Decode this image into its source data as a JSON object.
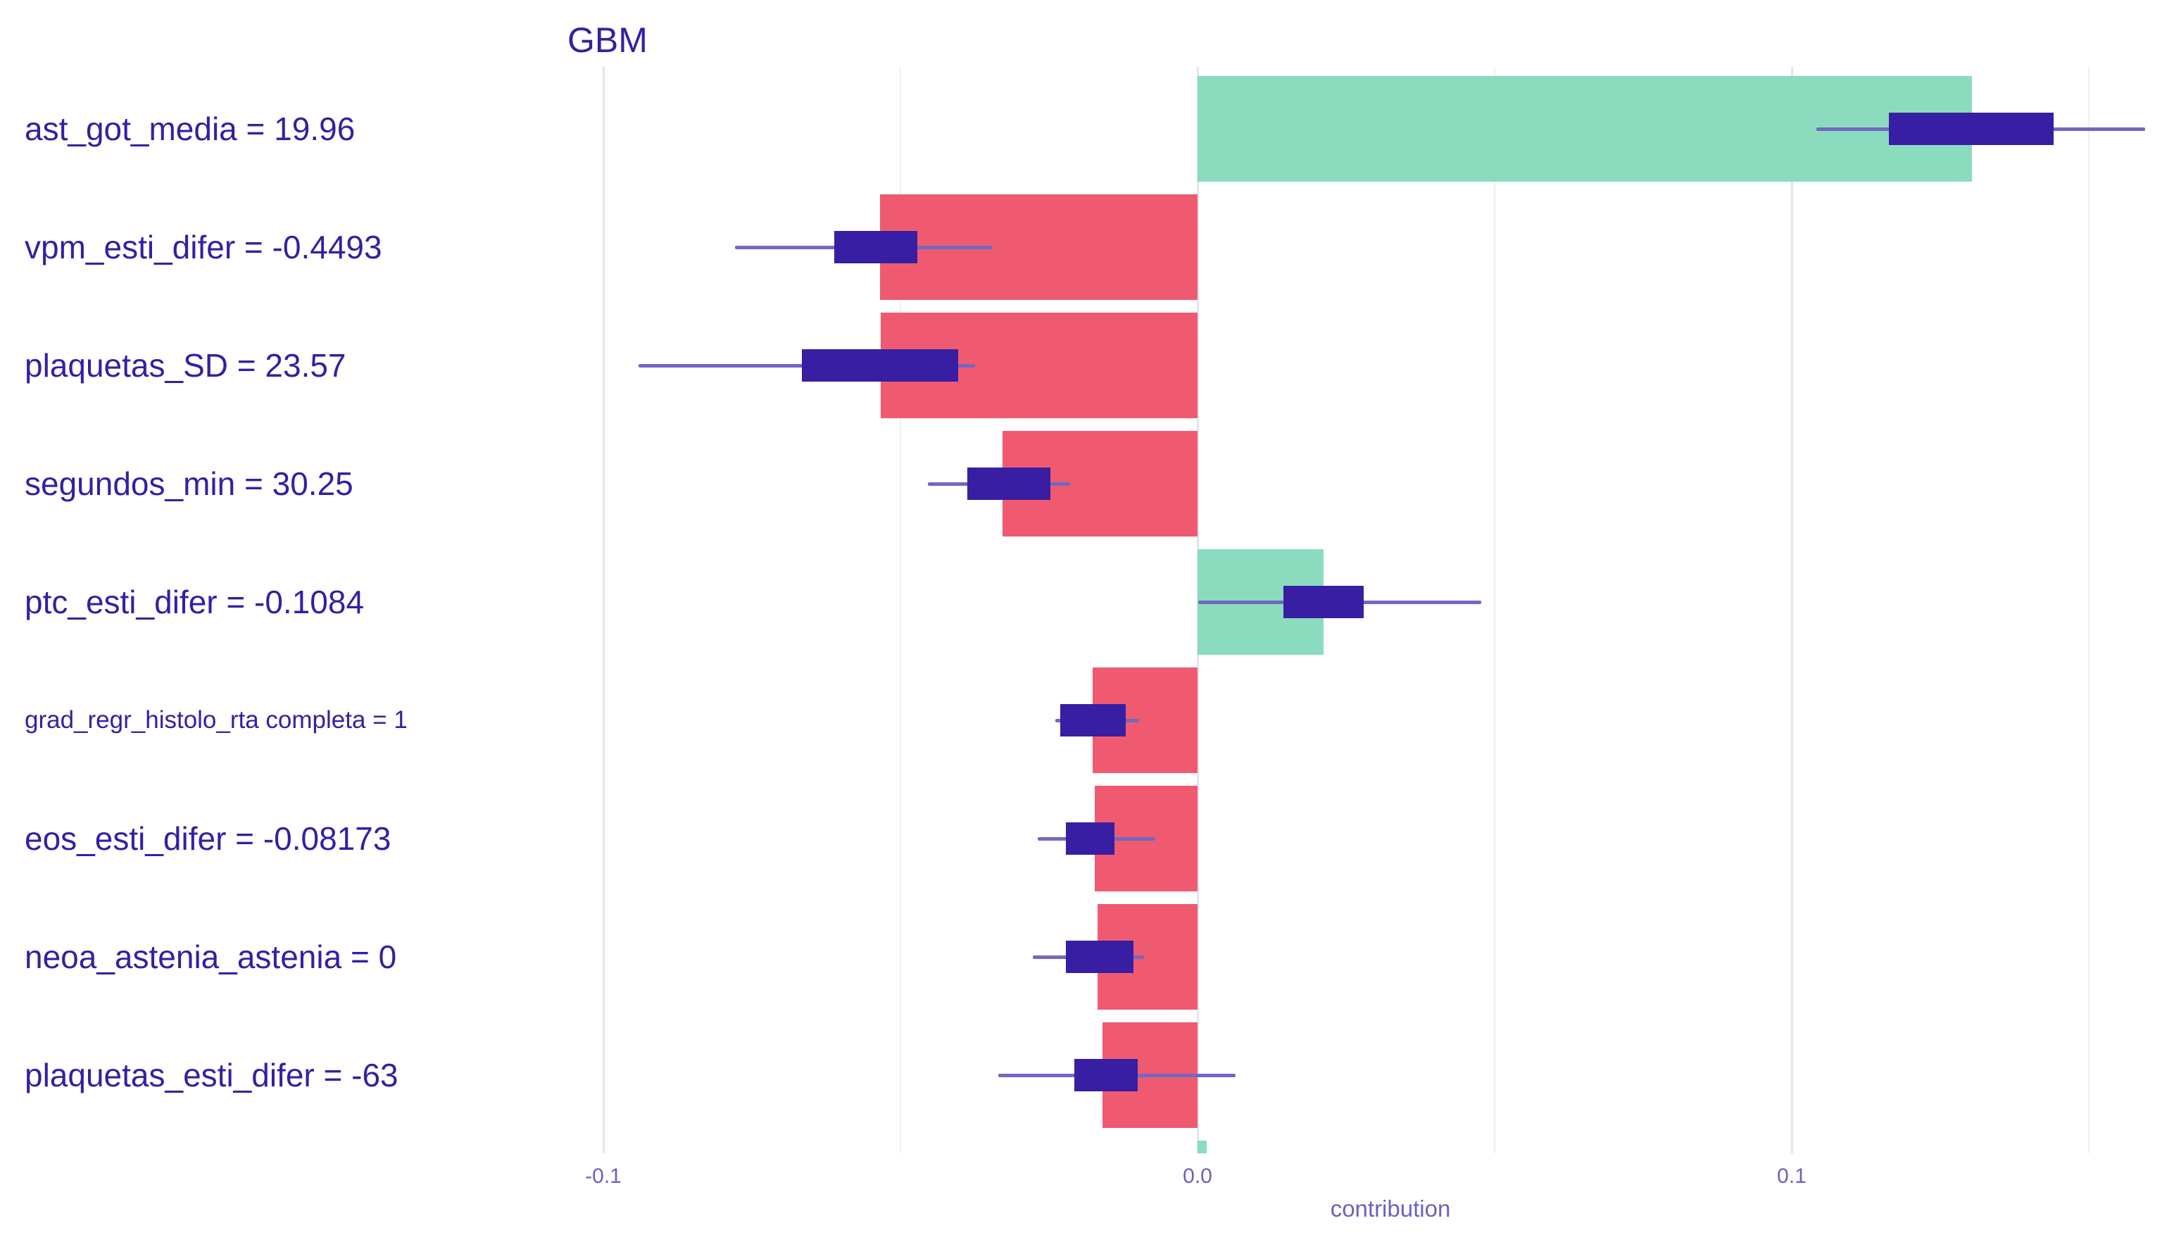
{
  "title": "GBM",
  "axis": {
    "xlabel": "contribution",
    "ticks": [
      {
        "label": "-0.1",
        "value": -0.1
      },
      {
        "label": "0.0",
        "value": 0.0
      },
      {
        "label": "0.1",
        "value": 0.1
      }
    ]
  },
  "colors": {
    "positive_bar": "#8bdcbe",
    "negative_bar": "#f05a71",
    "boxplot": "#371ea3",
    "whisker": "#7268c2",
    "label_text": "#371ea3",
    "axis_text": "#6b63ba",
    "grid_major": "#e4e4ec",
    "grid_minor": "#f0f0f6"
  },
  "chart_data": {
    "type": "bar",
    "orientation": "horizontal",
    "title": "GBM",
    "xlabel": "contribution",
    "xlim": [
      -0.113,
      0.164
    ],
    "x_ticks": [
      -0.1,
      0.0,
      0.1
    ],
    "grid_major": [
      -0.1,
      0.0,
      0.1
    ],
    "grid_minor": [
      -0.05,
      0.05,
      0.15
    ],
    "legend_position": "none",
    "grid": true,
    "bars": [
      {
        "label": "ast_got_media = 19.96",
        "value": 0.1303,
        "box": [
          0.1163,
          0.1441
        ],
        "whisker": [
          0.1041,
          0.1595
        ],
        "small_font": false
      },
      {
        "label": "vpm_esti_difer = -0.4493",
        "value": -0.0534,
        "box": [
          -0.0611,
          -0.0472
        ],
        "whisker": [
          -0.0778,
          -0.0345
        ],
        "small_font": false
      },
      {
        "label": "plaquetas_SD = 23.57",
        "value": -0.0533,
        "box": [
          -0.0666,
          -0.0403
        ],
        "whisker": [
          -0.0941,
          -0.0374
        ],
        "small_font": false
      },
      {
        "label": "segundos_min = 30.25",
        "value": -0.0328,
        "box": [
          -0.0387,
          -0.0248
        ],
        "whisker": [
          -0.0454,
          -0.0214
        ],
        "small_font": false
      },
      {
        "label": "ptc_esti_difer = -0.1084",
        "value": 0.0212,
        "box": [
          0.0145,
          0.028
        ],
        "whisker": [
          0.0001,
          0.0477
        ],
        "small_font": false
      },
      {
        "label": "grad_regr_histolo_rta completa = 1",
        "value": -0.0177,
        "box": [
          -0.0231,
          -0.0121
        ],
        "whisker": [
          -0.0239,
          -0.0098
        ],
        "small_font": true
      },
      {
        "label": "eos_esti_difer = -0.08173",
        "value": -0.0173,
        "box": [
          -0.0222,
          -0.014
        ],
        "whisker": [
          -0.0269,
          -0.0071
        ],
        "small_font": false
      },
      {
        "label": "neoa_astenia_astenia = 0",
        "value": -0.0168,
        "box": [
          -0.0222,
          -0.0108
        ],
        "whisker": [
          -0.0277,
          -0.009
        ],
        "small_font": false
      },
      {
        "label": "plaquetas_esti_difer = -63",
        "value": -0.016,
        "box": [
          -0.0207,
          -0.0101
        ],
        "whisker": [
          -0.0335,
          0.0064
        ],
        "small_font": false
      }
    ],
    "partial_next_bar": {
      "visible": true,
      "direction": "positive",
      "from_value": 0.0
    }
  }
}
